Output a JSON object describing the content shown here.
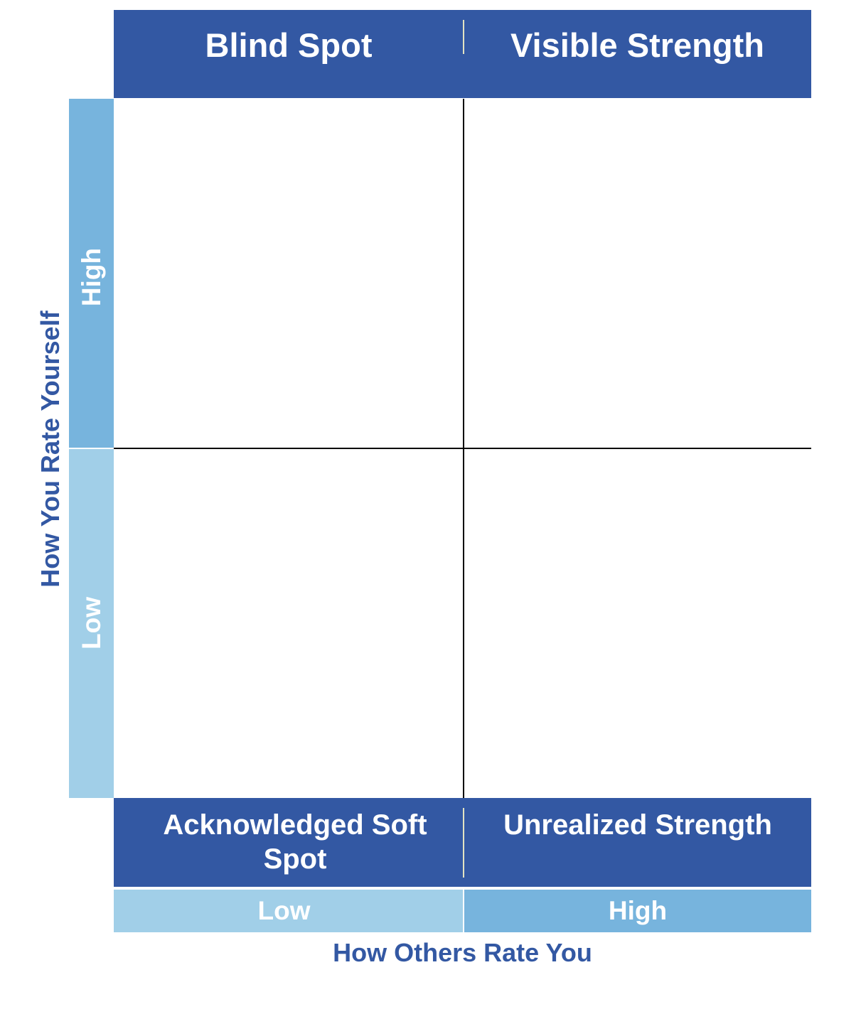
{
  "header": {
    "top_left_label": "Blind Spot",
    "top_right_label": "Visible Strength"
  },
  "footer": {
    "bottom_left_label": "Acknowledged Soft Spot",
    "bottom_right_label": "Unrealized Strength"
  },
  "y_axis": {
    "title": "How You Rate Yourself",
    "high_label": "High",
    "low_label": "Low"
  },
  "x_axis": {
    "title": "How Others Rate You",
    "low_label": "Low",
    "high_label": "High"
  },
  "colors": {
    "dark_blue": "#3358a3",
    "mid_blue": "#77b4dd",
    "light_blue": "#a1cfe8",
    "divider": "#e3e3c2",
    "grid_line": "#000000"
  }
}
